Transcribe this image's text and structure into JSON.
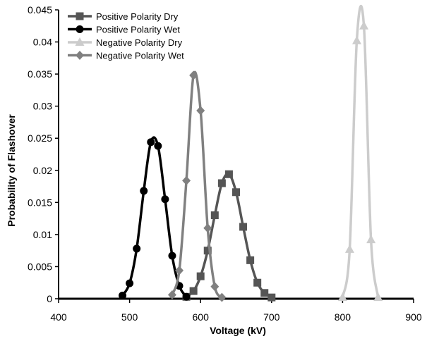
{
  "chart_data": {
    "type": "line",
    "title": "",
    "xlabel": "Voltage (kV)",
    "ylabel": "Probability of Flashover",
    "xlim": [
      400,
      900
    ],
    "ylim": [
      0,
      0.045
    ],
    "x_ticks": [
      "400",
      "500",
      "600",
      "700",
      "800",
      "900"
    ],
    "y_ticks": [
      "0",
      "0.005",
      "0.01",
      "0.015",
      "0.02",
      "0.025",
      "0.03",
      "0.035",
      "0.04",
      "0.045"
    ],
    "grid": false,
    "legend_position": "top-left",
    "series": [
      {
        "name": "Positive Polarity Dry",
        "color": "#555555",
        "marker": "square",
        "x": [
          580,
          590,
          600,
          610,
          620,
          630,
          640,
          650,
          660,
          670,
          680,
          690,
          700
        ],
        "y": [
          0.0003,
          0.0012,
          0.0035,
          0.0075,
          0.013,
          0.018,
          0.0194,
          0.0166,
          0.0112,
          0.006,
          0.0025,
          0.0009,
          0.0002
        ]
      },
      {
        "name": "Positive Polarity Wet",
        "color": "#000000",
        "marker": "circle",
        "x": [
          490,
          500,
          510,
          520,
          530,
          540,
          550,
          560,
          570,
          580
        ],
        "y": [
          0.0005,
          0.0024,
          0.0078,
          0.0168,
          0.0244,
          0.0238,
          0.0155,
          0.0067,
          0.002,
          0.0003
        ]
      },
      {
        "name": "Negative Polarity Dry",
        "color": "#cccccc",
        "marker": "triangle",
        "x": [
          800,
          810,
          820,
          830,
          840,
          850
        ],
        "y": [
          0.0002,
          0.0077,
          0.0402,
          0.0425,
          0.0092,
          0.0002
        ]
      },
      {
        "name": "Negative Polarity Wet",
        "color": "#808080",
        "marker": "diamond",
        "x": [
          560,
          570,
          580,
          590,
          600,
          610,
          620,
          630
        ],
        "y": [
          0.0006,
          0.0044,
          0.0184,
          0.0348,
          0.0293,
          0.011,
          0.0019,
          0.0002
        ]
      }
    ]
  }
}
